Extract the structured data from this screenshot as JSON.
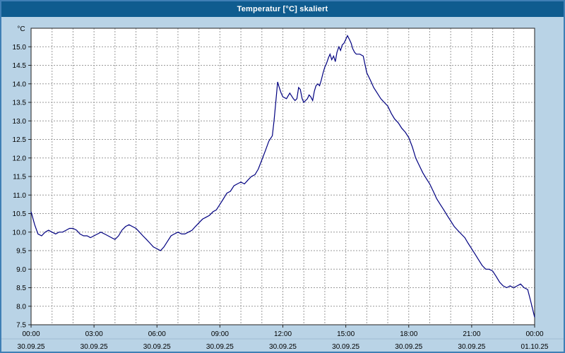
{
  "window": {
    "title": "Temperatur [°C] skaliert"
  },
  "colors": {
    "titlebar": "#0f5c8f",
    "title_text": "#ffffff",
    "background": "#b9d3e6",
    "border": "#3f7fb5",
    "plot_bg": "#ffffff",
    "grid": "#999999",
    "frame": "#222222",
    "line": "#000080",
    "separator": "#9fbdd4"
  },
  "chart_data": {
    "type": "line",
    "title": "Temperatur [°C] skaliert",
    "xlabel": "",
    "ylabel": "°C",
    "ylim": [
      7.5,
      15.5
    ],
    "xlim_hours": [
      0,
      24
    ],
    "grid": "dashed",
    "legend": "none",
    "minor_x_step_hours": 1,
    "y_tick_labels": [
      "7.5",
      "8.0",
      "8.5",
      "9.0",
      "9.5",
      "10.0",
      "10.5",
      "11.0",
      "11.5",
      "12.0",
      "12.5",
      "13.0",
      "13.5",
      "14.0",
      "14.5",
      "15.0"
    ],
    "x_ticks": [
      {
        "hour": 0,
        "time": "00:00",
        "date": "30.09.25"
      },
      {
        "hour": 3,
        "time": "03:00",
        "date": "30.09.25"
      },
      {
        "hour": 6,
        "time": "06:00",
        "date": "30.09.25"
      },
      {
        "hour": 9,
        "time": "09:00",
        "date": "30.09.25"
      },
      {
        "hour": 12,
        "time": "12:00",
        "date": "30.09.25"
      },
      {
        "hour": 15,
        "time": "15:00",
        "date": "30.09.25"
      },
      {
        "hour": 18,
        "time": "18:00",
        "date": "30.09.25"
      },
      {
        "hour": 21,
        "time": "21:00",
        "date": "30.09.25"
      },
      {
        "hour": 24,
        "time": "00:00",
        "date": "01.10.25"
      }
    ],
    "series": [
      {
        "name": "Temperatur",
        "color": "#000080",
        "points": [
          [
            0,
            10.55
          ],
          [
            0.17,
            10.2
          ],
          [
            0.33,
            9.95
          ],
          [
            0.5,
            9.9
          ],
          [
            0.67,
            10.0
          ],
          [
            0.83,
            10.05
          ],
          [
            1,
            10.0
          ],
          [
            1.17,
            9.95
          ],
          [
            1.33,
            10.0
          ],
          [
            1.5,
            10.0
          ],
          [
            1.67,
            10.05
          ],
          [
            1.83,
            10.1
          ],
          [
            2,
            10.1
          ],
          [
            2.17,
            10.05
          ],
          [
            2.33,
            9.95
          ],
          [
            2.5,
            9.9
          ],
          [
            2.67,
            9.9
          ],
          [
            2.83,
            9.85
          ],
          [
            3,
            9.9
          ],
          [
            3.17,
            9.95
          ],
          [
            3.33,
            10.0
          ],
          [
            3.5,
            9.95
          ],
          [
            3.67,
            9.9
          ],
          [
            3.83,
            9.85
          ],
          [
            4,
            9.8
          ],
          [
            4.17,
            9.9
          ],
          [
            4.33,
            10.05
          ],
          [
            4.5,
            10.15
          ],
          [
            4.67,
            10.2
          ],
          [
            4.83,
            10.15
          ],
          [
            5,
            10.1
          ],
          [
            5.17,
            10.0
          ],
          [
            5.33,
            9.9
          ],
          [
            5.5,
            9.8
          ],
          [
            5.67,
            9.7
          ],
          [
            5.83,
            9.6
          ],
          [
            6,
            9.55
          ],
          [
            6.17,
            9.5
          ],
          [
            6.33,
            9.6
          ],
          [
            6.5,
            9.75
          ],
          [
            6.67,
            9.9
          ],
          [
            6.83,
            9.95
          ],
          [
            7,
            10.0
          ],
          [
            7.17,
            9.95
          ],
          [
            7.33,
            9.95
          ],
          [
            7.5,
            10.0
          ],
          [
            7.67,
            10.05
          ],
          [
            7.83,
            10.15
          ],
          [
            8,
            10.25
          ],
          [
            8.17,
            10.35
          ],
          [
            8.33,
            10.4
          ],
          [
            8.5,
            10.45
          ],
          [
            8.67,
            10.55
          ],
          [
            8.83,
            10.6
          ],
          [
            9,
            10.75
          ],
          [
            9.17,
            10.9
          ],
          [
            9.33,
            11.05
          ],
          [
            9.5,
            11.1
          ],
          [
            9.67,
            11.25
          ],
          [
            9.83,
            11.3
          ],
          [
            10,
            11.35
          ],
          [
            10.17,
            11.3
          ],
          [
            10.33,
            11.4
          ],
          [
            10.5,
            11.5
          ],
          [
            10.67,
            11.55
          ],
          [
            10.83,
            11.7
          ],
          [
            11,
            11.95
          ],
          [
            11.17,
            12.2
          ],
          [
            11.33,
            12.45
          ],
          [
            11.5,
            12.6
          ],
          [
            11.58,
            13.0
          ],
          [
            11.67,
            13.55
          ],
          [
            11.75,
            14.05
          ],
          [
            11.83,
            13.9
          ],
          [
            11.92,
            13.75
          ],
          [
            12,
            13.65
          ],
          [
            12.17,
            13.6
          ],
          [
            12.33,
            13.75
          ],
          [
            12.5,
            13.6
          ],
          [
            12.58,
            13.55
          ],
          [
            12.67,
            13.6
          ],
          [
            12.75,
            13.9
          ],
          [
            12.83,
            13.85
          ],
          [
            12.92,
            13.6
          ],
          [
            13,
            13.5
          ],
          [
            13.08,
            13.55
          ],
          [
            13.17,
            13.6
          ],
          [
            13.25,
            13.7
          ],
          [
            13.33,
            13.65
          ],
          [
            13.42,
            13.55
          ],
          [
            13.5,
            13.8
          ],
          [
            13.58,
            13.95
          ],
          [
            13.67,
            14.0
          ],
          [
            13.75,
            13.95
          ],
          [
            13.83,
            14.1
          ],
          [
            13.92,
            14.3
          ],
          [
            14,
            14.45
          ],
          [
            14.08,
            14.55
          ],
          [
            14.17,
            14.7
          ],
          [
            14.25,
            14.8
          ],
          [
            14.33,
            14.65
          ],
          [
            14.42,
            14.75
          ],
          [
            14.5,
            14.6
          ],
          [
            14.58,
            14.85
          ],
          [
            14.67,
            15.0
          ],
          [
            14.75,
            14.9
          ],
          [
            14.83,
            15.05
          ],
          [
            14.92,
            15.1
          ],
          [
            15,
            15.2
          ],
          [
            15.08,
            15.3
          ],
          [
            15.17,
            15.2
          ],
          [
            15.25,
            15.1
          ],
          [
            15.33,
            14.95
          ],
          [
            15.42,
            14.85
          ],
          [
            15.5,
            14.8
          ],
          [
            15.67,
            14.8
          ],
          [
            15.83,
            14.75
          ],
          [
            16,
            14.3
          ],
          [
            16.17,
            14.1
          ],
          [
            16.33,
            13.9
          ],
          [
            16.5,
            13.75
          ],
          [
            16.67,
            13.6
          ],
          [
            16.83,
            13.5
          ],
          [
            17,
            13.4
          ],
          [
            17.17,
            13.2
          ],
          [
            17.33,
            13.05
          ],
          [
            17.5,
            12.95
          ],
          [
            17.67,
            12.8
          ],
          [
            17.83,
            12.7
          ],
          [
            18,
            12.55
          ],
          [
            18.17,
            12.3
          ],
          [
            18.33,
            12.0
          ],
          [
            18.5,
            11.8
          ],
          [
            18.67,
            11.6
          ],
          [
            18.83,
            11.45
          ],
          [
            19,
            11.3
          ],
          [
            19.17,
            11.1
          ],
          [
            19.33,
            10.9
          ],
          [
            19.5,
            10.75
          ],
          [
            19.67,
            10.6
          ],
          [
            19.83,
            10.45
          ],
          [
            20,
            10.3
          ],
          [
            20.17,
            10.15
          ],
          [
            20.33,
            10.05
          ],
          [
            20.5,
            9.95
          ],
          [
            20.67,
            9.85
          ],
          [
            20.83,
            9.7
          ],
          [
            21,
            9.55
          ],
          [
            21.17,
            9.4
          ],
          [
            21.33,
            9.25
          ],
          [
            21.5,
            9.1
          ],
          [
            21.67,
            9.0
          ],
          [
            21.83,
            9.0
          ],
          [
            22,
            8.95
          ],
          [
            22.17,
            8.8
          ],
          [
            22.33,
            8.65
          ],
          [
            22.5,
            8.55
          ],
          [
            22.67,
            8.5
          ],
          [
            22.83,
            8.55
          ],
          [
            23,
            8.5
          ],
          [
            23.17,
            8.55
          ],
          [
            23.33,
            8.6
          ],
          [
            23.5,
            8.5
          ],
          [
            23.67,
            8.45
          ],
          [
            23.83,
            8.1
          ],
          [
            24,
            7.7
          ]
        ]
      }
    ]
  }
}
